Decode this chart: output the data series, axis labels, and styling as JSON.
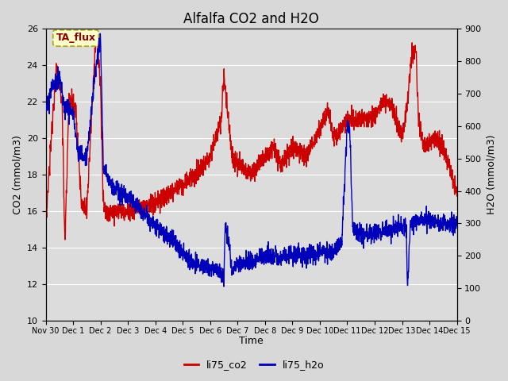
{
  "title": "Alfalfa CO2 and H2O",
  "xlabel": "Time",
  "ylabel_left": "CO2 (mmol/m3)",
  "ylabel_right": "H2O (mmol/m3)",
  "annotation_text": "TA_flux",
  "annotation_bg": "#ffffcc",
  "annotation_border": "#aaa800",
  "annotation_text_color": "#880000",
  "ylim_left": [
    10,
    26
  ],
  "ylim_right": [
    0,
    900
  ],
  "yticks_left": [
    10,
    12,
    14,
    16,
    18,
    20,
    22,
    24,
    26
  ],
  "yticks_right": [
    0,
    100,
    200,
    300,
    400,
    500,
    600,
    700,
    800,
    900
  ],
  "xtick_labels": [
    "Nov 30",
    "Dec 1",
    "Dec 2",
    "Dec 3",
    "Dec 4",
    "Dec 5",
    "Dec 6",
    "Dec 7",
    "Dec 8",
    "Dec 9",
    "Dec 10",
    "Dec 11",
    "Dec 12",
    "Dec 13",
    "Dec 14",
    "Dec 15"
  ],
  "legend_labels": [
    "li75_co2",
    "li75_h2o"
  ],
  "co2_color": "#cc0000",
  "h2o_color": "#0000bb",
  "fig_bg_color": "#d8d8d8",
  "plot_bg_color": "#dcdcdc",
  "grid_color": "#ffffff",
  "title_fontsize": 12,
  "label_fontsize": 9,
  "tick_fontsize": 8,
  "legend_fontsize": 9
}
